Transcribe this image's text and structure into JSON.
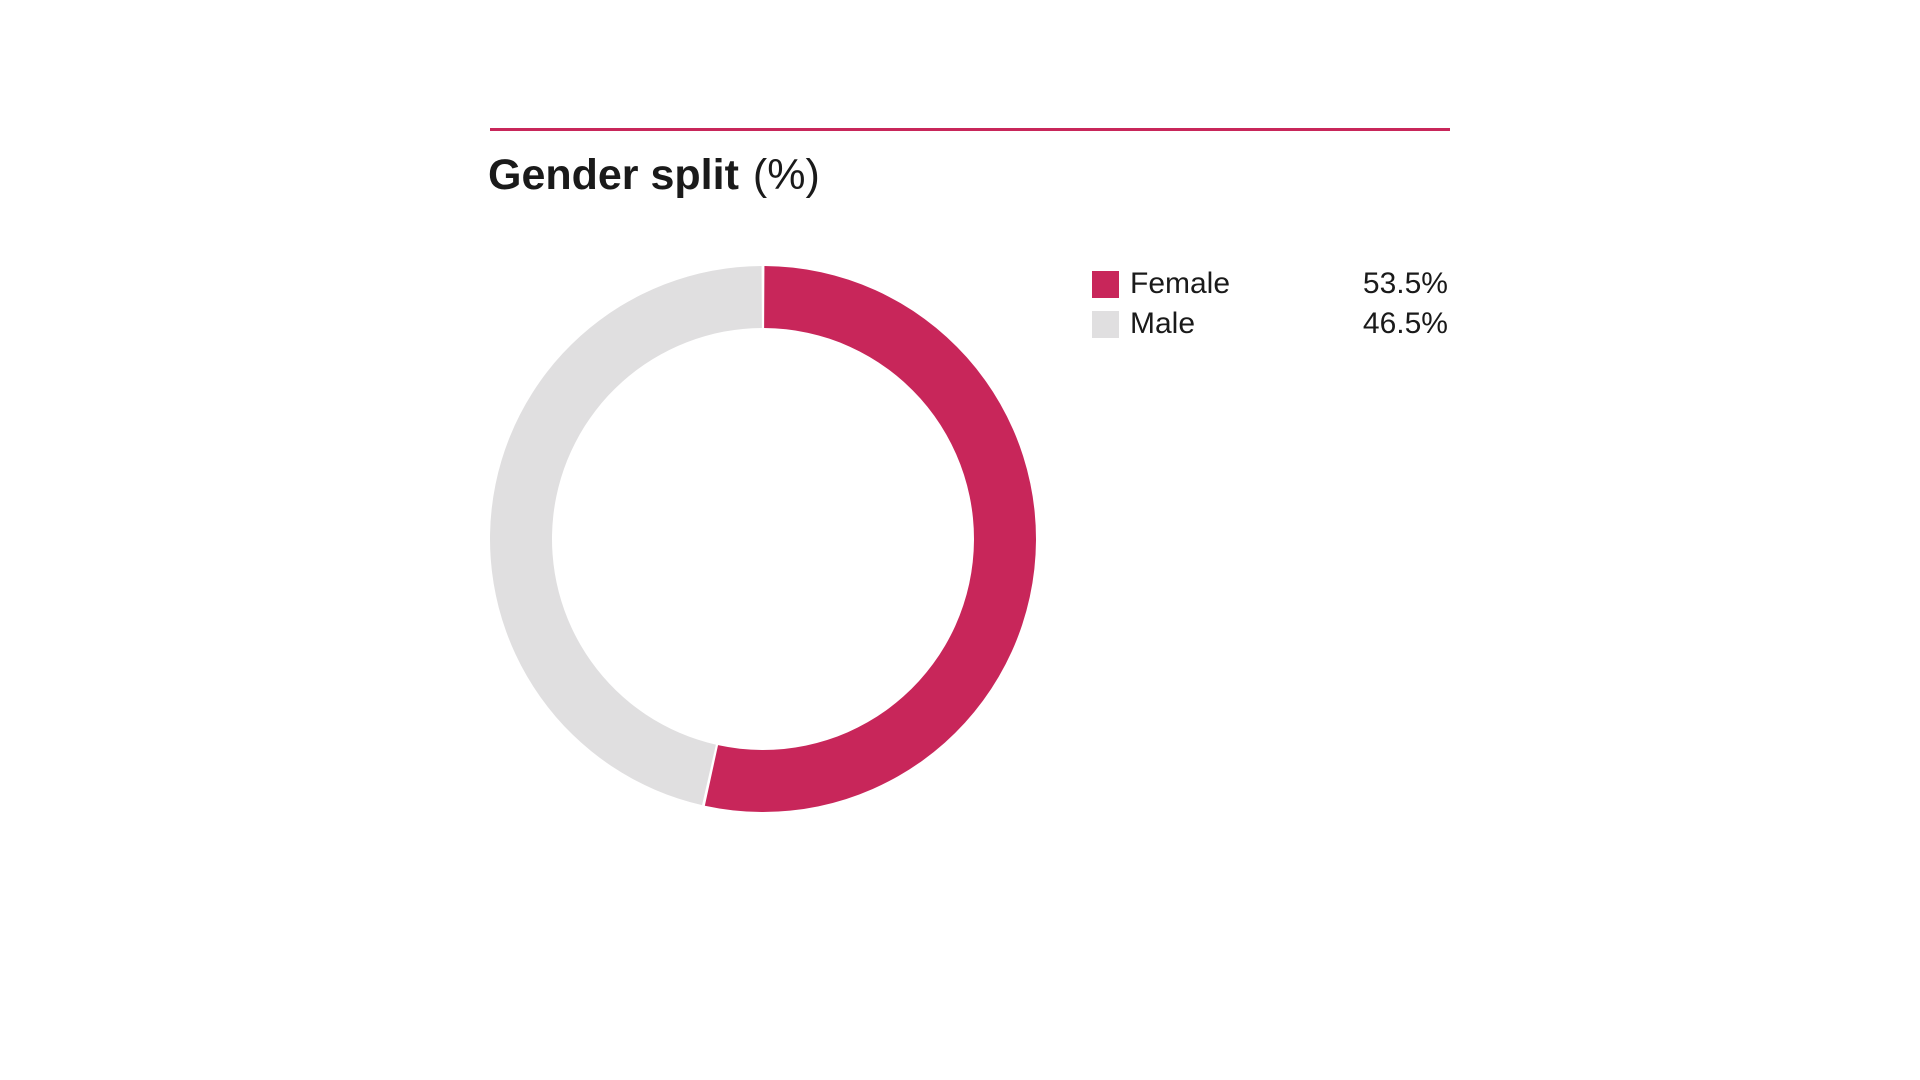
{
  "colors": {
    "accent": "#c8265a",
    "female": "#c8265a",
    "male": "#e0dfe0"
  },
  "chart_data": {
    "type": "pie",
    "variant": "donut",
    "title": "Gender split",
    "unit_label": "(%)",
    "legend_placement": "right",
    "slices": [
      {
        "label": "Female",
        "value": 53.5,
        "display": "53.5%",
        "color": "#c8265a"
      },
      {
        "label": "Male",
        "value": 46.5,
        "display": "46.5%",
        "color": "#e0dfe0"
      }
    ]
  }
}
